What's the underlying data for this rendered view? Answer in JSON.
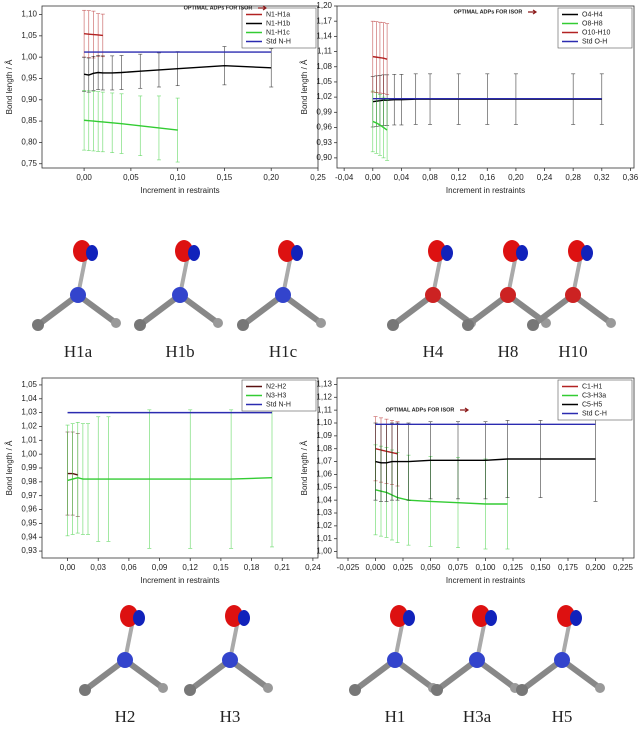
{
  "chart_data": [
    {
      "type": "line",
      "annotation": "OPTIMAL ADPs FOR ISOR",
      "xlabel": "Increment in restraints",
      "ylabel": "Bond length / Å",
      "x": [
        0,
        0.005,
        0.01,
        0.015,
        0.02,
        0.03,
        0.04,
        0.06,
        0.08,
        0.1,
        0.15,
        0.2
      ],
      "xlim": [
        -0.045,
        0.25
      ],
      "xticks": [
        {
          "value": 0,
          "label": "0,00"
        },
        {
          "value": 0.05,
          "label": "0,05"
        },
        {
          "value": 0.1,
          "label": "0,10"
        },
        {
          "value": 0.15,
          "label": "0,15"
        },
        {
          "value": 0.2,
          "label": "0,20"
        },
        {
          "value": 0.25,
          "label": "0,25"
        }
      ],
      "ylim": [
        0.74,
        1.12
      ],
      "yticks": [
        {
          "value": 0.75,
          "label": "0,75"
        },
        {
          "value": 0.8,
          "label": "0,80"
        },
        {
          "value": 0.85,
          "label": "0,85"
        },
        {
          "value": 0.9,
          "label": "0,90"
        },
        {
          "value": 0.95,
          "label": "0,95"
        },
        {
          "value": 1.0,
          "label": "1,00"
        },
        {
          "value": 1.05,
          "label": "1,05"
        },
        {
          "value": 1.1,
          "label": "1,10"
        }
      ],
      "series": [
        {
          "name": "N1-H1a",
          "color": "#b22222",
          "values": [
            1.055,
            1.054,
            1.053,
            1.052,
            1.051,
            null,
            null,
            null,
            null,
            null,
            null,
            null
          ],
          "errors": [
            0.055,
            0.055,
            0.055,
            0.05,
            0.05,
            null,
            null,
            null,
            null,
            null,
            null,
            null
          ]
        },
        {
          "name": "N1-H1b",
          "color": "#000000",
          "values": [
            0.96,
            0.958,
            0.962,
            0.964,
            0.963,
            0.963,
            0.964,
            0.967,
            0.97,
            0.973,
            0.98,
            0.975
          ],
          "errors": [
            0.04,
            0.04,
            0.04,
            0.04,
            0.04,
            0.04,
            0.04,
            0.04,
            0.04,
            0.04,
            0.045,
            0.045
          ]
        },
        {
          "name": "N1-H1c",
          "color": "#33cc33",
          "values": [
            0.852,
            0.851,
            0.85,
            0.849,
            0.848,
            0.846,
            0.844,
            0.839,
            0.834,
            0.829,
            null,
            null
          ],
          "errors": [
            0.07,
            0.07,
            0.07,
            0.07,
            0.07,
            0.07,
            0.07,
            0.07,
            0.075,
            0.075,
            null,
            null
          ]
        },
        {
          "name": "Std N-H",
          "color": "#2b2bb0",
          "values": [
            1.012,
            1.012,
            1.012,
            1.012,
            1.012,
            1.012,
            1.012,
            1.012,
            1.012,
            1.012,
            1.012,
            1.012
          ]
        }
      ]
    },
    {
      "type": "line",
      "annotation": "OPTIMAL ADPs FOR ISOR",
      "xlabel": "Increment in restraints",
      "ylabel": "Bond length / Å",
      "x": [
        0,
        0.005,
        0.01,
        0.015,
        0.02,
        0.03,
        0.04,
        0.06,
        0.08,
        0.12,
        0.16,
        0.2,
        0.28,
        0.32
      ],
      "xlim": [
        -0.05,
        0.365
      ],
      "xticks": [
        {
          "value": -0.04,
          "label": "-0,04"
        },
        {
          "value": 0,
          "label": "0,00"
        },
        {
          "value": 0.04,
          "label": "0,04"
        },
        {
          "value": 0.08,
          "label": "0,08"
        },
        {
          "value": 0.12,
          "label": "0,12"
        },
        {
          "value": 0.16,
          "label": "0,16"
        },
        {
          "value": 0.2,
          "label": "0,20"
        },
        {
          "value": 0.24,
          "label": "0,24"
        },
        {
          "value": 0.28,
          "label": "0,28"
        },
        {
          "value": 0.32,
          "label": "0,32"
        },
        {
          "value": 0.36,
          "label": "0,36"
        }
      ],
      "ylim": [
        0.88,
        1.2
      ],
      "yticks": [
        {
          "value": 0.9,
          "label": "0,90"
        },
        {
          "value": 0.93,
          "label": "0,93"
        },
        {
          "value": 0.96,
          "label": "0,96"
        },
        {
          "value": 0.99,
          "label": "0,99"
        },
        {
          "value": 1.02,
          "label": "1,02"
        },
        {
          "value": 1.05,
          "label": "1,05"
        },
        {
          "value": 1.08,
          "label": "1,08"
        },
        {
          "value": 1.11,
          "label": "1,11"
        },
        {
          "value": 1.14,
          "label": "1,14"
        },
        {
          "value": 1.17,
          "label": "1,17"
        },
        {
          "value": 1.2,
          "label": "1,20"
        }
      ],
      "series": [
        {
          "name": "O4-H4",
          "color": "#000000",
          "values": [
            1.011,
            1.012,
            1.013,
            1.014,
            1.014,
            1.015,
            1.015,
            1.016,
            1.016,
            1.016,
            1.016,
            1.016,
            1.016,
            1.016
          ],
          "errors": [
            0.05,
            0.05,
            0.05,
            0.05,
            0.05,
            0.05,
            0.05,
            0.05,
            0.05,
            0.05,
            0.05,
            0.05,
            0.05,
            0.05
          ]
        },
        {
          "name": "O8-H8",
          "color": "#33cc33",
          "values": [
            0.972,
            0.969,
            0.965,
            0.96,
            0.955,
            null,
            null,
            null,
            null,
            null,
            null,
            null,
            null,
            null
          ],
          "errors": [
            0.06,
            0.06,
            0.06,
            0.06,
            0.06,
            null,
            null,
            null,
            null,
            null,
            null,
            null,
            null,
            null
          ]
        },
        {
          "name": "O10-H10",
          "color": "#b22222",
          "values": [
            1.1,
            1.099,
            1.098,
            1.097,
            1.095,
            null,
            null,
            null,
            null,
            null,
            null,
            null,
            null,
            null
          ],
          "errors": [
            0.07,
            0.07,
            0.07,
            0.07,
            0.07,
            null,
            null,
            null,
            null,
            null,
            null,
            null,
            null,
            null
          ]
        },
        {
          "name": "Std O-H",
          "color": "#2b2bb0",
          "values": [
            1.017,
            1.017,
            1.017,
            1.017,
            1.017,
            1.017,
            1.017,
            1.017,
            1.017,
            1.017,
            1.017,
            1.017,
            1.017,
            1.017
          ]
        }
      ]
    },
    {
      "type": "line",
      "xlabel": "Increment in restraints",
      "ylabel": "Bond length / Å",
      "x": [
        0,
        0.005,
        0.01,
        0.015,
        0.02,
        0.03,
        0.04,
        0.08,
        0.12,
        0.16,
        0.2
      ],
      "xlim": [
        -0.025,
        0.245
      ],
      "xticks": [
        {
          "value": 0,
          "label": "0,00"
        },
        {
          "value": 0.03,
          "label": "0,03"
        },
        {
          "value": 0.06,
          "label": "0,06"
        },
        {
          "value": 0.09,
          "label": "0,09"
        },
        {
          "value": 0.12,
          "label": "0,12"
        },
        {
          "value": 0.15,
          "label": "0,15"
        },
        {
          "value": 0.18,
          "label": "0,18"
        },
        {
          "value": 0.21,
          "label": "0,21"
        },
        {
          "value": 0.24,
          "label": "0,24"
        }
      ],
      "ylim": [
        0.925,
        1.055
      ],
      "yticks": [
        {
          "value": 0.93,
          "label": "0,93"
        },
        {
          "value": 0.94,
          "label": "0,94"
        },
        {
          "value": 0.95,
          "label": "0,95"
        },
        {
          "value": 0.96,
          "label": "0,96"
        },
        {
          "value": 0.97,
          "label": "0,97"
        },
        {
          "value": 0.98,
          "label": "0,98"
        },
        {
          "value": 0.99,
          "label": "0,99"
        },
        {
          "value": 1.0,
          "label": "1,00"
        },
        {
          "value": 1.01,
          "label": "1,01"
        },
        {
          "value": 1.02,
          "label": "1,02"
        },
        {
          "value": 1.03,
          "label": "1,03"
        },
        {
          "value": 1.04,
          "label": "1,04"
        },
        {
          "value": 1.05,
          "label": "1,05"
        }
      ],
      "series": [
        {
          "name": "N2-H2",
          "color": "#5a1010",
          "values": [
            0.986,
            0.986,
            0.985,
            null,
            null,
            null,
            null,
            null,
            null,
            null,
            null
          ],
          "errors": [
            0.03,
            0.03,
            0.03,
            null,
            null,
            null,
            null,
            null,
            null,
            null,
            null
          ]
        },
        {
          "name": "N3-H3",
          "color": "#33cc33",
          "values": [
            0.981,
            0.982,
            0.983,
            0.982,
            0.982,
            0.982,
            0.982,
            0.982,
            0.982,
            0.982,
            0.983
          ],
          "errors": [
            0.04,
            0.04,
            0.04,
            0.04,
            0.04,
            0.045,
            0.045,
            0.05,
            0.05,
            0.05,
            0.05
          ]
        },
        {
          "name": "Std N-H",
          "color": "#2b2bb0",
          "values": [
            1.03,
            1.03,
            1.03,
            1.03,
            1.03,
            1.03,
            1.03,
            1.03,
            1.03,
            1.03,
            1.03
          ]
        }
      ]
    },
    {
      "type": "line",
      "annotation": "OPTIMAL ADPs FOR ISOR",
      "xlabel": "Increment in restraints",
      "ylabel": "Bond length / Å",
      "x": [
        0,
        0.005,
        0.01,
        0.015,
        0.02,
        0.03,
        0.05,
        0.075,
        0.1,
        0.12,
        0.15,
        0.2
      ],
      "xlim": [
        -0.035,
        0.235
      ],
      "xticks": [
        {
          "value": -0.025,
          "label": "-0,025"
        },
        {
          "value": 0,
          "label": "0,000"
        },
        {
          "value": 0.025,
          "label": "0,025"
        },
        {
          "value": 0.05,
          "label": "0,050"
        },
        {
          "value": 0.075,
          "label": "0,075"
        },
        {
          "value": 0.1,
          "label": "0,100"
        },
        {
          "value": 0.125,
          "label": "0,125"
        },
        {
          "value": 0.15,
          "label": "0,150"
        },
        {
          "value": 0.175,
          "label": "0,175"
        },
        {
          "value": 0.2,
          "label": "0,200"
        },
        {
          "value": 0.225,
          "label": "0,225"
        }
      ],
      "ylim": [
        0.995,
        1.135
      ],
      "yticks": [
        {
          "value": 1.0,
          "label": "1,00"
        },
        {
          "value": 1.01,
          "label": "1,01"
        },
        {
          "value": 1.02,
          "label": "1,02"
        },
        {
          "value": 1.03,
          "label": "1,03"
        },
        {
          "value": 1.04,
          "label": "1,04"
        },
        {
          "value": 1.05,
          "label": "1,05"
        },
        {
          "value": 1.06,
          "label": "1,06"
        },
        {
          "value": 1.07,
          "label": "1,07"
        },
        {
          "value": 1.08,
          "label": "1,08"
        },
        {
          "value": 1.09,
          "label": "1,09"
        },
        {
          "value": 1.1,
          "label": "1,10"
        },
        {
          "value": 1.11,
          "label": "1,11"
        },
        {
          "value": 1.12,
          "label": "1,12"
        },
        {
          "value": 1.13,
          "label": "1,13"
        }
      ],
      "series": [
        {
          "name": "C1-H1",
          "color": "#b22222",
          "values": [
            1.08,
            1.079,
            1.078,
            1.077,
            1.076,
            null,
            null,
            null,
            null,
            null,
            null,
            null
          ],
          "errors": [
            0.025,
            0.025,
            0.025,
            0.025,
            0.025,
            null,
            null,
            null,
            null,
            null,
            null,
            null
          ]
        },
        {
          "name": "C3-H3a",
          "color": "#33cc33",
          "values": [
            1.048,
            1.047,
            1.046,
            1.044,
            1.042,
            1.04,
            1.039,
            1.038,
            1.037,
            1.037,
            null,
            null
          ],
          "errors": [
            0.035,
            0.035,
            0.035,
            0.035,
            0.035,
            0.035,
            0.035,
            0.035,
            0.035,
            0.035,
            null,
            null
          ]
        },
        {
          "name": "C5-H5",
          "color": "#000000",
          "values": [
            1.07,
            1.069,
            1.069,
            1.07,
            1.07,
            1.07,
            1.071,
            1.071,
            1.071,
            1.072,
            1.072,
            1.072
          ],
          "errors": [
            0.03,
            0.03,
            0.03,
            0.03,
            0.03,
            0.03,
            0.03,
            0.03,
            0.03,
            0.03,
            0.03,
            0.033
          ]
        },
        {
          "name": "Std C-H",
          "color": "#2b2bb0",
          "values": [
            1.099,
            1.099,
            1.099,
            1.099,
            1.099,
            1.099,
            1.099,
            1.099,
            1.099,
            1.099,
            1.099,
            1.099
          ]
        }
      ]
    }
  ],
  "structure_labels": [
    [
      "H1a",
      "H1b",
      "H1c"
    ],
    [
      "H4",
      "H8",
      "H10"
    ],
    [
      "H2",
      "H3"
    ],
    [
      "H1",
      "H3a",
      "H5"
    ]
  ]
}
